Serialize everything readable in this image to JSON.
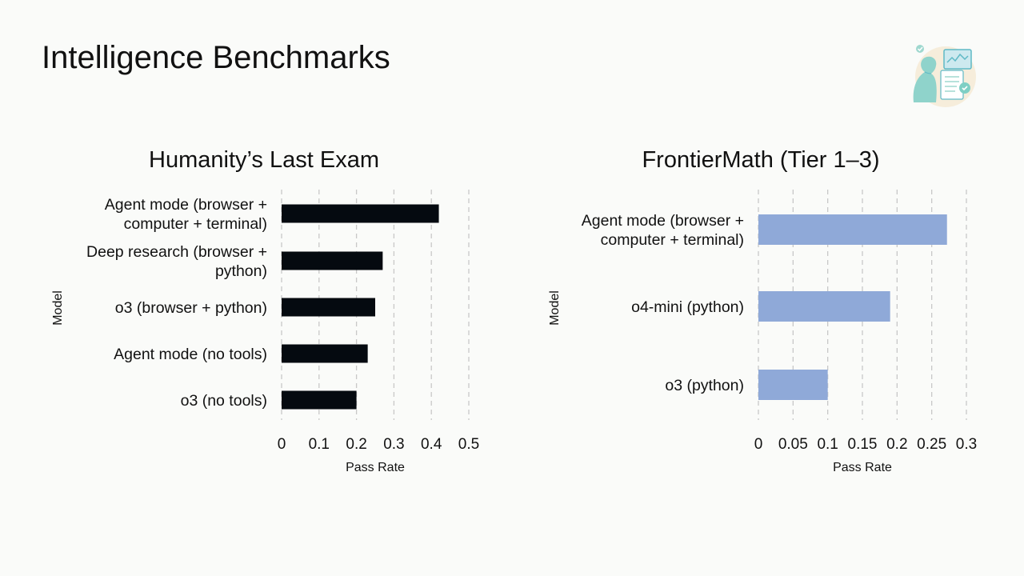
{
  "slide": {
    "title": "Intelligence Benchmarks",
    "illustration_icon": "ai-assistant-illustration-icon"
  },
  "chart_data": [
    {
      "type": "bar",
      "orientation": "horizontal",
      "title": "Humanity’s Last Exam",
      "xlabel": "Pass Rate",
      "ylabel": "Model",
      "categories": [
        [
          "Agent mode (browser +",
          "computer + terminal)"
        ],
        [
          "Deep research (browser +",
          "python)"
        ],
        [
          "o3 (browser + python)"
        ],
        [
          "Agent mode (no tools)"
        ],
        [
          "o3 (no tools)"
        ]
      ],
      "values": [
        0.42,
        0.27,
        0.25,
        0.23,
        0.2
      ],
      "xlim": [
        0,
        0.5
      ],
      "xticks": [
        "0",
        "0.1",
        "0.2",
        "0.3",
        "0.4",
        "0.5"
      ],
      "tick_values": [
        0,
        0.1,
        0.2,
        0.3,
        0.4,
        0.5
      ],
      "grid": "vertical dashed",
      "bar_color": "#050a10"
    },
    {
      "type": "bar",
      "orientation": "horizontal",
      "title": "FrontierMath (Tier 1–3)",
      "xlabel": "Pass Rate",
      "ylabel": "Model",
      "categories": [
        [
          "Agent mode (browser +",
          "computer + terminal)"
        ],
        [
          "o4-mini (python)"
        ],
        [
          "o3 (python)"
        ]
      ],
      "values": [
        0.272,
        0.19,
        0.1
      ],
      "xlim": [
        0,
        0.3
      ],
      "xticks": [
        "0",
        "0.05",
        "0.1",
        "0.15",
        "0.2",
        "0.25",
        "0.3"
      ],
      "tick_values": [
        0,
        0.05,
        0.1,
        0.15,
        0.2,
        0.25,
        0.3
      ],
      "grid": "vertical dashed",
      "bar_color": "#8fa9d8"
    }
  ]
}
